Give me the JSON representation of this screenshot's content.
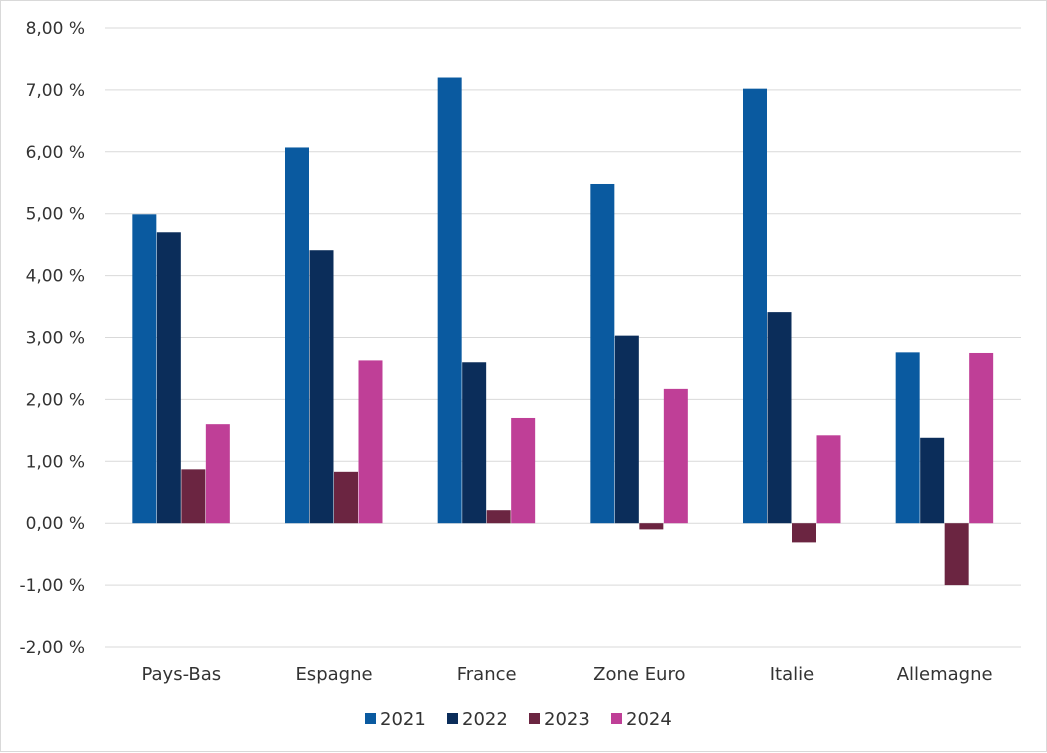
{
  "chart_data": {
    "type": "bar",
    "title": "",
    "xlabel": "",
    "ylabel": "",
    "ylim": [
      -2,
      8
    ],
    "yticks": [
      -2,
      -1,
      0,
      1,
      2,
      3,
      4,
      5,
      6,
      7,
      8
    ],
    "ytick_labels": [
      "-2,00 %",
      "-1,00 %",
      "0,00 %",
      "1,00 %",
      "2,00 %",
      "3,00 %",
      "4,00 %",
      "5,00 %",
      "6,00 %",
      "7,00 %",
      "8,00 %"
    ],
    "grid": true,
    "legend_position": "bottom",
    "categories": [
      "Pays-Bas",
      "Espagne",
      "France",
      "Zone Euro",
      "Italie",
      "Allemagne"
    ],
    "series": [
      {
        "name": "2021",
        "color": "#0a5aa0",
        "values": [
          4.99,
          6.07,
          7.2,
          5.48,
          7.02,
          2.76
        ]
      },
      {
        "name": "2022",
        "color": "#0b2d5a",
        "values": [
          4.7,
          4.41,
          2.6,
          3.03,
          3.41,
          1.38
        ]
      },
      {
        "name": "2023",
        "color": "#6b2541",
        "values": [
          0.87,
          0.83,
          0.21,
          -0.1,
          -0.31,
          -1.0
        ]
      },
      {
        "name": "2024",
        "color": "#bf3f97",
        "values": [
          1.6,
          2.63,
          1.7,
          2.17,
          1.42,
          2.75
        ]
      }
    ]
  }
}
